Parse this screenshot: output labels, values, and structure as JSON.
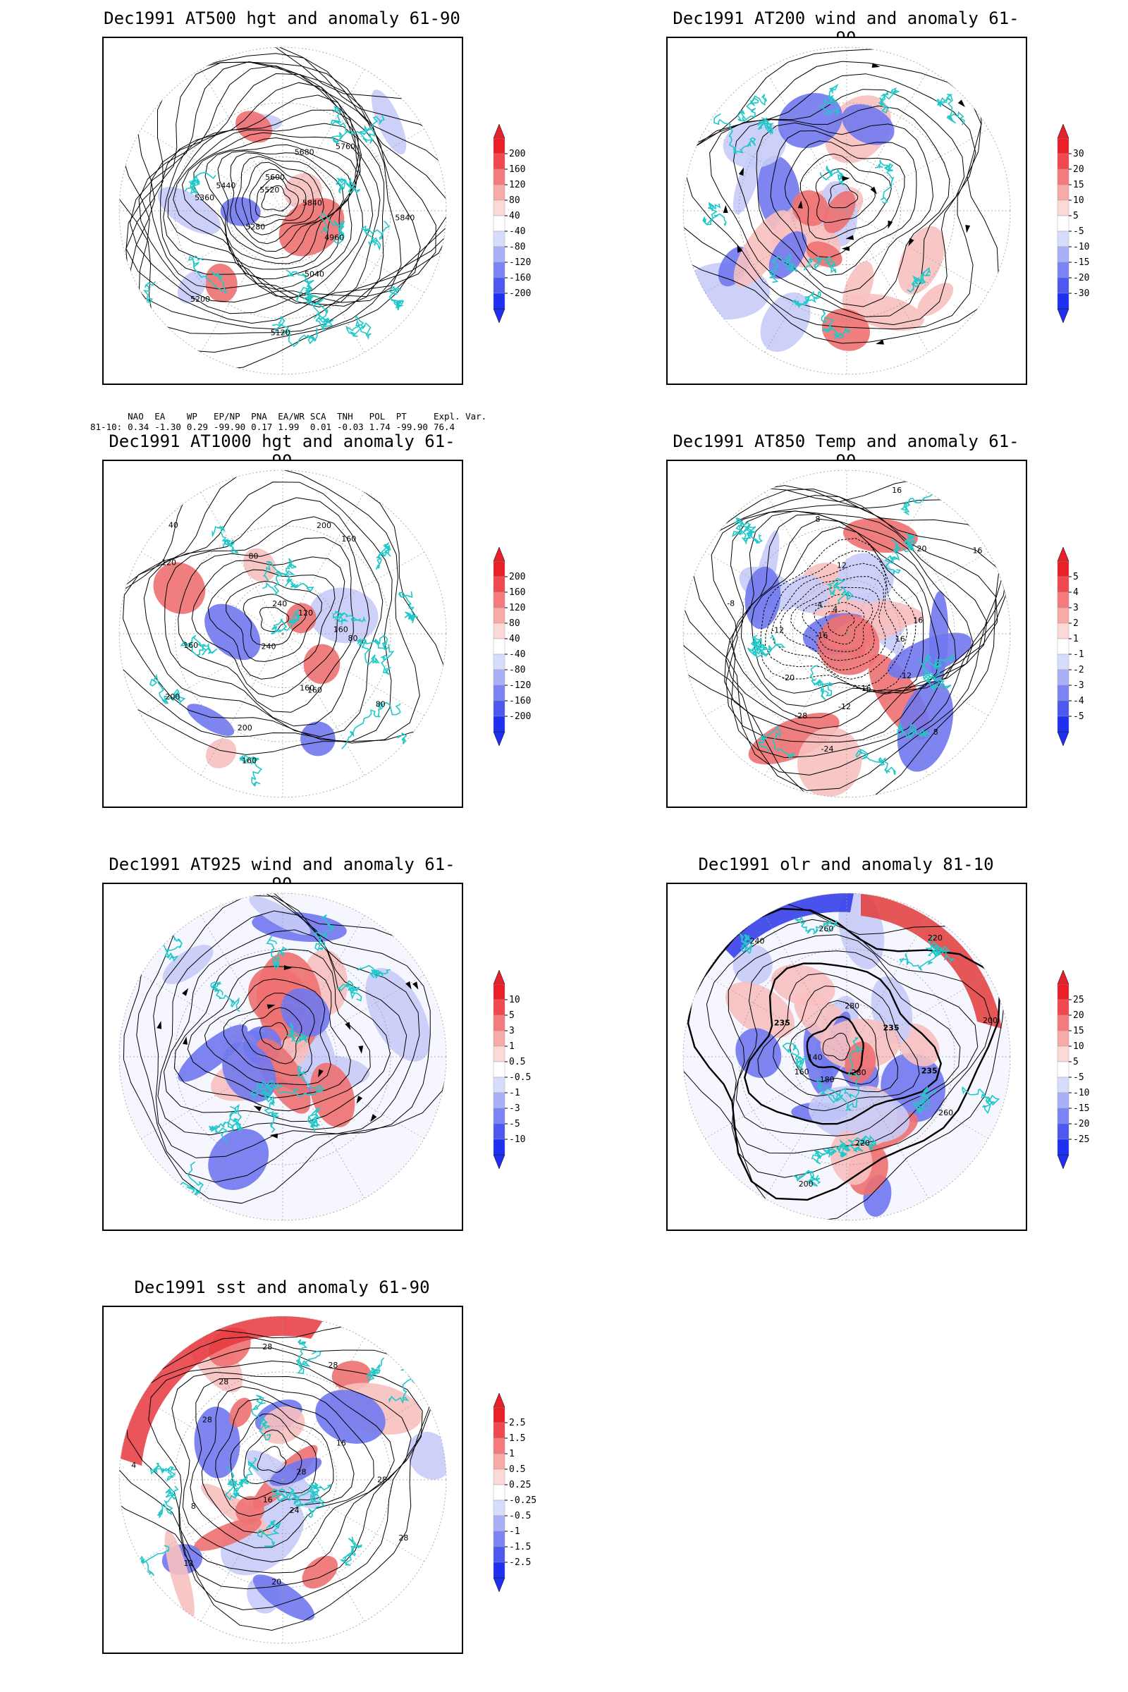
{
  "panels": [
    {
      "title": "Dec1991 AT500 hgt and anomaly 61-90",
      "colorbar": [
        "200",
        "160",
        "120",
        "80",
        "40",
        "-40",
        "-80",
        "-120",
        "-160",
        "-200"
      ],
      "contour_labels": [
        "5840",
        "4960",
        "5040",
        "5120",
        "5200",
        "5280",
        "5360",
        "5440",
        "5520",
        "5600",
        "5680",
        "5760",
        "5840"
      ]
    },
    {
      "title": "Dec1991 AT200 wind and anomaly 61-90",
      "colorbar": [
        "30",
        "20",
        "15",
        "10",
        "5",
        "-5",
        "-10",
        "-15",
        "-20",
        "-30"
      ],
      "contour_labels": []
    },
    {
      "title": "Dec1991 AT1000 hgt and anomaly 61-90",
      "colorbar": [
        "200",
        "160",
        "120",
        "80",
        "40",
        "-40",
        "-80",
        "-120",
        "-160",
        "-200"
      ],
      "contour_labels": [
        "80",
        "80",
        "160",
        "160",
        "160",
        "200",
        "240",
        "200",
        "160",
        "120",
        "40",
        "80",
        "240",
        "200",
        "160",
        "120",
        "160"
      ]
    },
    {
      "title": "Dec1991 AT850 Temp and anomaly 61-90",
      "colorbar": [
        "5",
        "4",
        "3",
        "2",
        "1",
        "-1",
        "-2",
        "-3",
        "-4",
        "-5"
      ],
      "contour_labels": [
        "16",
        "12",
        "8",
        "16",
        "-12",
        "-24",
        "-28",
        "-20",
        "-16",
        "-12",
        "-8",
        "-4",
        "4",
        "8",
        "12",
        "16",
        "20",
        "16",
        "16"
      ]
    },
    {
      "title": "Dec1991 AT925 wind and anomaly 61-90",
      "colorbar": [
        "10",
        "5",
        "3",
        "1",
        "0.5",
        "-0.5",
        "-1",
        "-3",
        "-5",
        "-10"
      ],
      "contour_labels": []
    },
    {
      "title": "Dec1991 olr and anomaly 81-10",
      "colorbar": [
        "25",
        "20",
        "15",
        "10",
        "5",
        "-5",
        "-10",
        "-15",
        "-20",
        "-25"
      ],
      "contour_labels": [
        "235",
        "260",
        "280",
        "220",
        "200",
        "180",
        "160",
        "140",
        "235",
        "240",
        "260",
        "280",
        "220",
        "235",
        "200"
      ]
    },
    {
      "title": "Dec1991 sst and anomaly 61-90",
      "colorbar": [
        "2.5",
        "1.5",
        "1",
        "0.5",
        "0.25",
        "-0.25",
        "-0.5",
        "-1",
        "-1.5",
        "-2.5"
      ],
      "contour_labels": [
        "28",
        "28",
        "24",
        "20",
        "16",
        "12",
        "8",
        "4",
        "28",
        "28",
        "28",
        "28",
        "16",
        "28"
      ]
    }
  ],
  "indices": {
    "headers": [
      "NAO",
      "EA",
      "WP",
      "EP/NP",
      "PNA",
      "EA/WR",
      "SCA",
      "TNH",
      "POL",
      "PT",
      "Expl. Var."
    ],
    "row_label": "81-10:",
    "values": [
      "0.34",
      "-1.30",
      "0.29",
      "-99.90",
      "0.17",
      "1.99",
      "0.01",
      "-0.03",
      "1.74",
      "-99.90",
      "76.4"
    ]
  },
  "colors": {
    "positive_strong": "#e8202a",
    "negative_strong": "#2030f0",
    "coastline": "#20c8c8",
    "contour": "#000000"
  }
}
